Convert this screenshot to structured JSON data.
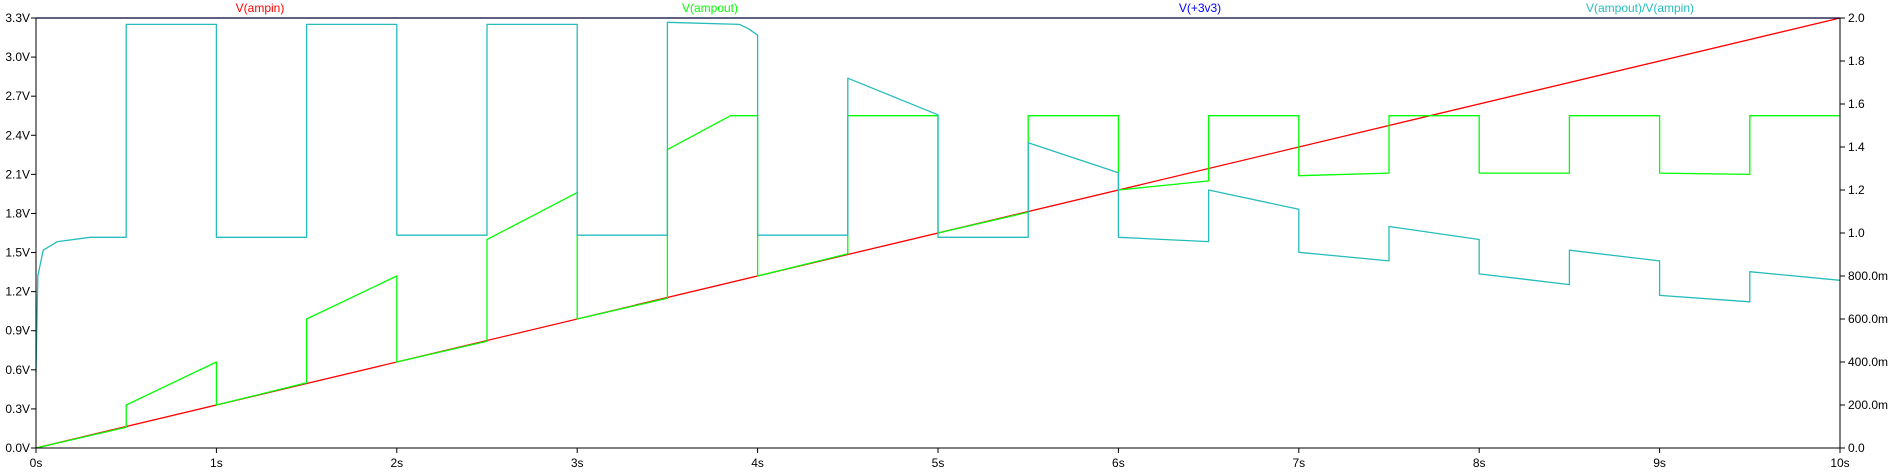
{
  "chart_data": {
    "type": "line",
    "title": "",
    "xlabel": "",
    "ylabel": "",
    "grid": false,
    "xlim": [
      0,
      10
    ],
    "ylim_left": [
      0,
      3.3
    ],
    "ylim_right": [
      0,
      2
    ],
    "x_ticks": [
      {
        "value": 0,
        "label": "0s"
      },
      {
        "value": 1,
        "label": "1s"
      },
      {
        "value": 2,
        "label": "2s"
      },
      {
        "value": 3,
        "label": "3s"
      },
      {
        "value": 4,
        "label": "4s"
      },
      {
        "value": 5,
        "label": "5s"
      },
      {
        "value": 6,
        "label": "6s"
      },
      {
        "value": 7,
        "label": "7s"
      },
      {
        "value": 8,
        "label": "8s"
      },
      {
        "value": 9,
        "label": "9s"
      },
      {
        "value": 10,
        "label": "10s"
      }
    ],
    "y_left_ticks": [
      {
        "value": 0,
        "label": "0.0V"
      },
      {
        "value": 0.3,
        "label": "0.3V"
      },
      {
        "value": 0.6,
        "label": "0.6V"
      },
      {
        "value": 0.9,
        "label": "0.9V"
      },
      {
        "value": 1.2,
        "label": "1.2V"
      },
      {
        "value": 1.5,
        "label": "1.5V"
      },
      {
        "value": 1.8,
        "label": "1.8V"
      },
      {
        "value": 2.1,
        "label": "2.1V"
      },
      {
        "value": 2.4,
        "label": "2.4V"
      },
      {
        "value": 2.7,
        "label": "2.7V"
      },
      {
        "value": 3.0,
        "label": "3.0V"
      },
      {
        "value": 3.3,
        "label": "3.3V"
      }
    ],
    "y_right_ticks": [
      {
        "value": 0,
        "label": "0.0"
      },
      {
        "value": 0.2,
        "label": "200.0m"
      },
      {
        "value": 0.4,
        "label": "400.0m"
      },
      {
        "value": 0.6,
        "label": "600.0m"
      },
      {
        "value": 0.8,
        "label": "800.0m"
      },
      {
        "value": 1.0,
        "label": "1.0"
      },
      {
        "value": 1.2,
        "label": "1.2"
      },
      {
        "value": 1.4,
        "label": "1.4"
      },
      {
        "value": 1.6,
        "label": "1.6"
      },
      {
        "value": 1.8,
        "label": "1.8"
      },
      {
        "value": 2.0,
        "label": "2.0"
      }
    ],
    "series": [
      {
        "name": "V(ampin)",
        "color": "#ff0000",
        "axis": "left",
        "points": [
          [
            0,
            0
          ],
          [
            10,
            3.3
          ]
        ]
      },
      {
        "name": "V(ampout)",
        "color": "#00ff00",
        "axis": "left",
        "points": [
          [
            0,
            0
          ],
          [
            0.5,
            0.16
          ],
          [
            0.5,
            0.33
          ],
          [
            1.0,
            0.66
          ],
          [
            1.0,
            0.33
          ],
          [
            1.5,
            0.5
          ],
          [
            1.5,
            0.99
          ],
          [
            2.0,
            1.32
          ],
          [
            2.0,
            0.66
          ],
          [
            2.5,
            0.82
          ],
          [
            2.5,
            1.6
          ],
          [
            3.0,
            1.96
          ],
          [
            3.0,
            0.99
          ],
          [
            3.5,
            1.15
          ],
          [
            3.5,
            2.29
          ],
          [
            3.85,
            2.55
          ],
          [
            4.0,
            2.55
          ],
          [
            4.0,
            1.32
          ],
          [
            4.5,
            1.49
          ],
          [
            4.5,
            2.55
          ],
          [
            5.0,
            2.55
          ],
          [
            5.0,
            1.65
          ],
          [
            5.5,
            1.81
          ],
          [
            5.5,
            2.55
          ],
          [
            6.0,
            2.55
          ],
          [
            6.0,
            1.98
          ],
          [
            6.5,
            2.05
          ],
          [
            6.5,
            2.55
          ],
          [
            7.0,
            2.55
          ],
          [
            7.0,
            2.09
          ],
          [
            7.5,
            2.11
          ],
          [
            7.5,
            2.55
          ],
          [
            8.0,
            2.55
          ],
          [
            8.0,
            2.11
          ],
          [
            8.5,
            2.11
          ],
          [
            8.5,
            2.55
          ],
          [
            9.0,
            2.55
          ],
          [
            9.0,
            2.11
          ],
          [
            9.5,
            2.1
          ],
          [
            9.5,
            2.55
          ],
          [
            10.0,
            2.55
          ]
        ]
      },
      {
        "name": "V(+3v3)",
        "color": "#0000ff",
        "axis": "left",
        "points": [
          [
            0,
            3.3
          ],
          [
            10,
            3.3
          ]
        ]
      },
      {
        "name": "V(ampout)/V(ampin)",
        "color": "#26bcbc",
        "axis": "right",
        "points": [
          [
            0,
            0.35
          ],
          [
            0.01,
            0.8
          ],
          [
            0.04,
            0.92
          ],
          [
            0.12,
            0.96
          ],
          [
            0.3,
            0.98
          ],
          [
            0.5,
            0.98
          ],
          [
            0.5,
            1.97
          ],
          [
            1.0,
            1.97
          ],
          [
            1.0,
            0.98
          ],
          [
            1.5,
            0.98
          ],
          [
            1.5,
            1.97
          ],
          [
            2.0,
            1.97
          ],
          [
            2.0,
            0.99
          ],
          [
            2.5,
            0.99
          ],
          [
            2.5,
            1.97
          ],
          [
            3.0,
            1.97
          ],
          [
            3.0,
            0.99
          ],
          [
            3.5,
            0.99
          ],
          [
            3.5,
            1.98
          ],
          [
            3.9,
            1.97
          ],
          [
            3.95,
            1.95
          ],
          [
            4.0,
            1.92
          ],
          [
            4.0,
            0.99
          ],
          [
            4.5,
            0.99
          ],
          [
            4.5,
            1.72
          ],
          [
            5.0,
            1.55
          ],
          [
            5.0,
            0.98
          ],
          [
            5.5,
            0.98
          ],
          [
            5.5,
            1.42
          ],
          [
            6.0,
            1.28
          ],
          [
            6.0,
            0.98
          ],
          [
            6.5,
            0.96
          ],
          [
            6.5,
            1.2
          ],
          [
            7.0,
            1.11
          ],
          [
            7.0,
            0.91
          ],
          [
            7.5,
            0.87
          ],
          [
            7.5,
            1.03
          ],
          [
            8.0,
            0.97
          ],
          [
            8.0,
            0.81
          ],
          [
            8.5,
            0.76
          ],
          [
            8.5,
            0.92
          ],
          [
            9.0,
            0.87
          ],
          [
            9.0,
            0.71
          ],
          [
            9.5,
            0.68
          ],
          [
            9.5,
            0.82
          ],
          [
            10.0,
            0.78
          ]
        ]
      }
    ]
  }
}
